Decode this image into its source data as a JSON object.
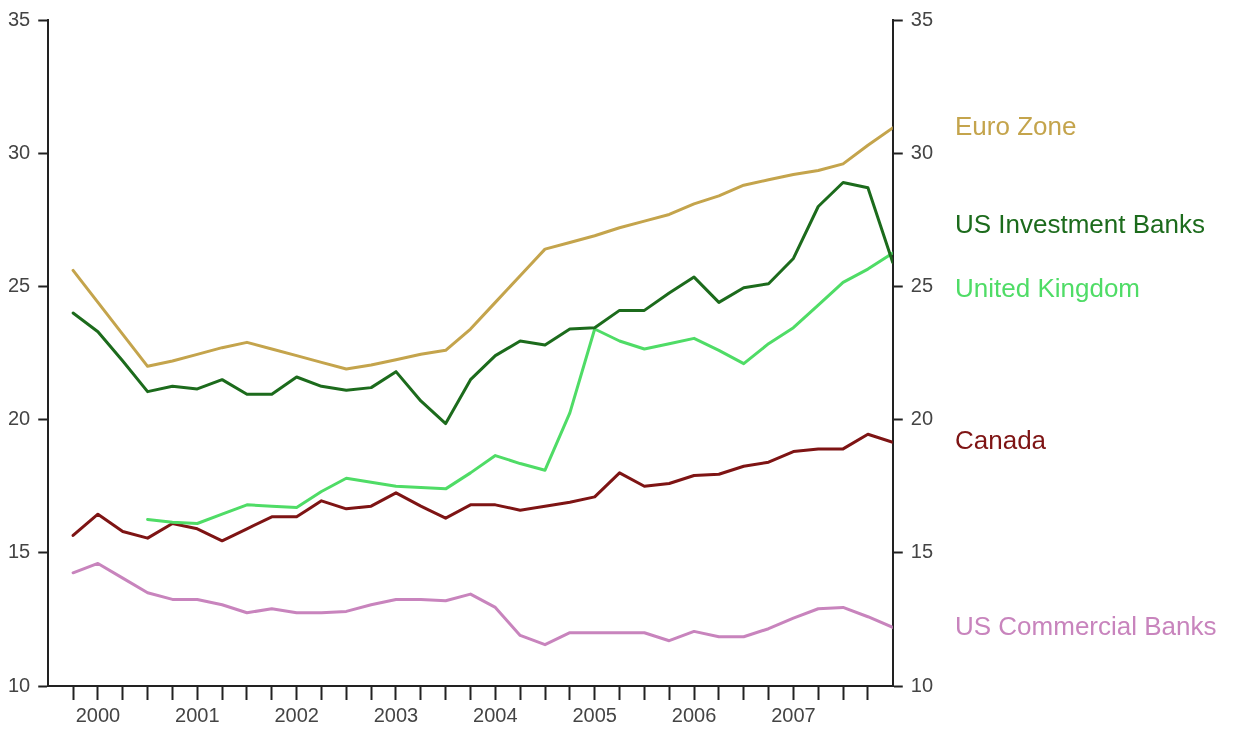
{
  "chart_data": {
    "type": "line",
    "marker": "none",
    "x": [
      2000.25,
      2000.5,
      2000.75,
      2001,
      2001.25,
      2001.5,
      2001.75,
      2002,
      2002.25,
      2002.5,
      2002.75,
      2003,
      2003.25,
      2003.5,
      2003.75,
      2004,
      2004.25,
      2004.5,
      2004.75,
      2005,
      2005.25,
      2005.5,
      2005.75,
      2006,
      2006.25,
      2006.5,
      2006.75,
      2007,
      2007.25,
      2007.5,
      2007.75,
      2008,
      2008.25,
      2008.5
    ],
    "xlim": [
      2000,
      2008.5
    ],
    "xticks": [
      {
        "value": 2000.25,
        "label": null
      },
      {
        "value": 2000.5,
        "label": "2000"
      },
      {
        "value": 2000.75,
        "label": null
      },
      {
        "value": 2001,
        "label": null
      },
      {
        "value": 2001.25,
        "label": null
      },
      {
        "value": 2001.5,
        "label": "2001"
      },
      {
        "value": 2001.75,
        "label": null
      },
      {
        "value": 2002,
        "label": null
      },
      {
        "value": 2002.25,
        "label": null
      },
      {
        "value": 2002.5,
        "label": "2002"
      },
      {
        "value": 2002.75,
        "label": null
      },
      {
        "value": 2003,
        "label": null
      },
      {
        "value": 2003.25,
        "label": null
      },
      {
        "value": 2003.5,
        "label": "2003"
      },
      {
        "value": 2003.75,
        "label": null
      },
      {
        "value": 2004,
        "label": null
      },
      {
        "value": 2004.25,
        "label": null
      },
      {
        "value": 2004.5,
        "label": "2004"
      },
      {
        "value": 2004.75,
        "label": null
      },
      {
        "value": 2005,
        "label": null
      },
      {
        "value": 2005.25,
        "label": null
      },
      {
        "value": 2005.5,
        "label": "2005"
      },
      {
        "value": 2005.75,
        "label": null
      },
      {
        "value": 2006,
        "label": null
      },
      {
        "value": 2006.25,
        "label": null
      },
      {
        "value": 2006.5,
        "label": "2006"
      },
      {
        "value": 2006.75,
        "label": null
      },
      {
        "value": 2007,
        "label": null
      },
      {
        "value": 2007.25,
        "label": null
      },
      {
        "value": 2007.5,
        "label": "2007"
      },
      {
        "value": 2007.75,
        "label": null
      },
      {
        "value": 2008,
        "label": null
      },
      {
        "value": 2008.25,
        "label": null
      }
    ],
    "ylim": [
      10,
      35
    ],
    "yticks": [
      10,
      15,
      20,
      25,
      30,
      35
    ],
    "y2lim": [
      10,
      35
    ],
    "y2ticks": [
      10,
      15,
      20,
      25,
      30,
      35
    ],
    "series": [
      {
        "name": "Euro Zone",
        "color": "#c4a44c",
        "values": [
          25.6,
          24.4,
          23.2,
          22.0,
          22.2,
          22.45,
          22.7,
          22.9,
          22.65,
          22.4,
          22.15,
          21.9,
          22.05,
          22.25,
          22.45,
          22.6,
          23.4,
          24.4,
          25.4,
          26.4,
          26.65,
          26.9,
          27.2,
          27.45,
          27.7,
          28.1,
          28.4,
          28.8,
          29.0,
          29.2,
          29.35,
          29.6,
          30.3,
          30.95
        ]
      },
      {
        "name": "US Investment Banks",
        "color": "#1c6b1c",
        "values": [
          24.0,
          23.3,
          22.2,
          21.05,
          21.25,
          21.15,
          21.5,
          20.95,
          20.95,
          21.6,
          21.25,
          21.1,
          21.2,
          21.8,
          20.7,
          19.85,
          21.5,
          22.4,
          22.95,
          22.8,
          23.4,
          23.45,
          24.1,
          24.1,
          24.75,
          25.35,
          24.4,
          24.95,
          25.1,
          26.05,
          28.0,
          28.9,
          28.7,
          25.9
        ]
      },
      {
        "name": "United Kingdom",
        "color": "#4fdc66",
        "values": [
          null,
          null,
          null,
          16.25,
          16.15,
          16.1,
          16.45,
          16.8,
          16.75,
          16.7,
          17.3,
          17.8,
          17.65,
          17.5,
          17.45,
          17.4,
          18.0,
          18.65,
          18.35,
          18.1,
          20.25,
          23.4,
          22.95,
          22.65,
          22.85,
          23.05,
          22.6,
          22.1,
          22.85,
          23.45,
          24.3,
          25.15,
          25.65,
          26.25
        ]
      },
      {
        "name": "Canada",
        "color": "#7e1414",
        "values": [
          15.65,
          16.45,
          15.8,
          15.55,
          16.1,
          15.9,
          15.45,
          15.9,
          16.35,
          16.35,
          16.95,
          16.65,
          16.75,
          17.25,
          16.75,
          16.3,
          16.8,
          16.8,
          16.6,
          16.75,
          16.9,
          17.1,
          18.0,
          17.5,
          17.6,
          17.9,
          17.95,
          18.25,
          18.4,
          18.8,
          18.9,
          18.9,
          19.45,
          19.15
        ]
      },
      {
        "name": "US Commercial Banks",
        "color": "#c884bd",
        "values": [
          14.25,
          14.6,
          14.05,
          13.5,
          13.25,
          13.25,
          13.05,
          12.75,
          12.9,
          12.75,
          12.75,
          12.8,
          13.05,
          13.25,
          13.25,
          13.2,
          13.45,
          12.95,
          11.9,
          11.55,
          12.0,
          12.0,
          12.0,
          12.0,
          11.7,
          12.05,
          11.85,
          11.85,
          12.15,
          12.55,
          12.9,
          12.95,
          12.6,
          12.2
        ]
      }
    ]
  }
}
